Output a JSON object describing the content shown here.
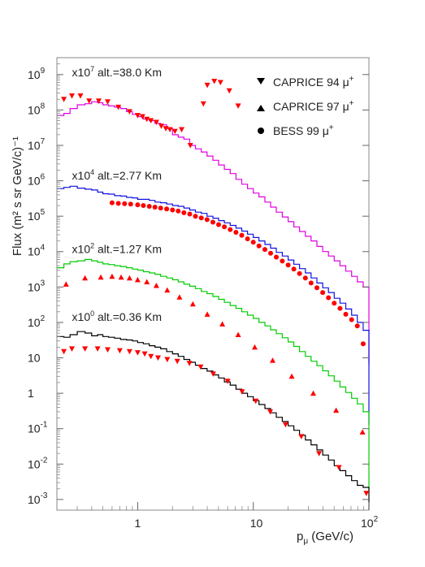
{
  "chart_data": {
    "type": "scatter",
    "title": "",
    "xlabel": "p",
    "xlabel_sub": "μ",
    "xlabel_unit": " (GeV/c)",
    "ylabel": "Flux (m² s sr GeV/c)⁻¹",
    "xscale": "log",
    "yscale": "log",
    "xlim": [
      0.2,
      100
    ],
    "ylim": [
      0.0005,
      3000000000
    ],
    "grid": false,
    "legend_position": "top-right",
    "x_ticks": [
      {
        "value": 1,
        "base": "1",
        "exp": ""
      },
      {
        "value": 10,
        "base": "10",
        "exp": ""
      },
      {
        "value": 100,
        "base": "10",
        "exp": "2"
      }
    ],
    "y_ticks": [
      {
        "value": 0.001,
        "base": "10",
        "exp": "-3"
      },
      {
        "value": 0.01,
        "base": "10",
        "exp": "-2"
      },
      {
        "value": 0.1,
        "base": "10",
        "exp": "-1"
      },
      {
        "value": 1,
        "base": "1",
        "exp": ""
      },
      {
        "value": 10,
        "base": "10",
        "exp": ""
      },
      {
        "value": 100,
        "base": "10",
        "exp": "2"
      },
      {
        "value": 1000,
        "base": "10",
        "exp": "3"
      },
      {
        "value": 10000,
        "base": "10",
        "exp": "4"
      },
      {
        "value": 100000,
        "base": "10",
        "exp": "5"
      },
      {
        "value": 1000000,
        "base": "10",
        "exp": "6"
      },
      {
        "value": 10000000,
        "base": "10",
        "exp": "7"
      },
      {
        "value": 100000000,
        "base": "10",
        "exp": "8"
      },
      {
        "value": 1000000000,
        "base": "10",
        "exp": "9"
      }
    ],
    "legend": [
      {
        "label": "CAPRICE 94",
        "particle": "μ",
        "charge": "+",
        "marker": "triangle-down"
      },
      {
        "label": "CAPRICE 97",
        "particle": "μ",
        "charge": "+",
        "marker": "triangle-up"
      },
      {
        "label": "BESS 99",
        "particle": "μ",
        "charge": "+",
        "marker": "circle"
      }
    ],
    "annotations": [
      {
        "scale_base": "x10",
        "scale_exp": "7",
        "text": " alt.=38.0 Km",
        "x": 0.27,
        "y": 900000000
      },
      {
        "scale_base": "x10",
        "scale_exp": "4",
        "text": " alt.=2.77 Km",
        "x": 0.27,
        "y": 1100000
      },
      {
        "scale_base": "x10",
        "scale_exp": "2",
        "text": " alt.=1.27 Km",
        "x": 0.27,
        "y": 9000
      },
      {
        "scale_base": "x10",
        "scale_exp": "0",
        "text": " alt.=0.36 Km",
        "x": 0.27,
        "y": 110
      }
    ],
    "series": [
      {
        "name": "",
        "kind": "step",
        "color": "#e000e0",
        "x": [
          0.2,
          0.23,
          0.26,
          0.3,
          0.35,
          0.4,
          0.45,
          0.5,
          0.56,
          0.63,
          0.71,
          0.8,
          0.9,
          1.0,
          1.12,
          1.26,
          1.41,
          1.58,
          1.78,
          2.0,
          2.24,
          2.51,
          2.82,
          3.16,
          3.55,
          3.98,
          4.47,
          5.01,
          5.62,
          6.31,
          7.08,
          7.94,
          8.91,
          10.0,
          11.2,
          12.6,
          14.1,
          15.8,
          17.8,
          20.0,
          22.4,
          25.1,
          28.2,
          31.6,
          35.5,
          39.8,
          44.7,
          50.1,
          56.2,
          63.1,
          70.8,
          79.4,
          89.1,
          100
        ],
        "y": [
          70000000,
          80000000,
          110000000,
          140000000,
          150000000,
          170000000,
          160000000,
          140000000,
          130000000,
          120000000,
          110000000,
          90000000,
          75000000,
          65000000,
          55000000,
          50000000,
          42000000,
          38000000,
          30000000,
          20000000,
          17000000,
          15000000,
          10000000,
          8000000,
          6500000,
          5000000,
          3800000,
          2800000,
          2100000,
          1600000,
          1100000,
          800000,
          600000,
          450000,
          350000,
          250000,
          180000,
          130000,
          95000,
          70000,
          50000,
          37000,
          27000,
          20000,
          14000,
          10000,
          7500,
          5500,
          4000,
          2800,
          2000,
          1400,
          1000,
          750
        ]
      },
      {
        "name": "",
        "kind": "step",
        "color": "#1010e0",
        "x": [
          0.2,
          0.23,
          0.26,
          0.3,
          0.35,
          0.4,
          0.45,
          0.5,
          0.56,
          0.63,
          0.71,
          0.8,
          0.9,
          1.0,
          1.12,
          1.26,
          1.41,
          1.58,
          1.78,
          2.0,
          2.24,
          2.51,
          2.82,
          3.16,
          3.55,
          3.98,
          4.47,
          5.01,
          5.62,
          6.31,
          7.08,
          7.94,
          8.91,
          10.0,
          11.2,
          12.6,
          14.1,
          15.8,
          17.8,
          20.0,
          22.4,
          25.1,
          28.2,
          31.6,
          35.5,
          39.8,
          44.7,
          50.1,
          56.2,
          63.1,
          70.8,
          79.4,
          89.1,
          100
        ],
        "y": [
          600000,
          650000,
          700000,
          620000,
          580000,
          550000,
          480000,
          430000,
          420000,
          380000,
          370000,
          340000,
          330000,
          300000,
          300000,
          280000,
          250000,
          240000,
          220000,
          200000,
          190000,
          170000,
          150000,
          130000,
          120000,
          100000,
          88000,
          75000,
          65000,
          55000,
          46000,
          38000,
          31000,
          25000,
          20000,
          16000,
          12500,
          9500,
          7500,
          5800,
          4400,
          3300,
          2500,
          1800,
          1300,
          950,
          700,
          480,
          350,
          240,
          160,
          100,
          60,
          15
        ]
      },
      {
        "name": "",
        "kind": "step",
        "color": "#00cc00",
        "x": [
          0.2,
          0.23,
          0.26,
          0.3,
          0.35,
          0.4,
          0.45,
          0.5,
          0.56,
          0.63,
          0.71,
          0.8,
          0.9,
          1.0,
          1.12,
          1.26,
          1.41,
          1.58,
          1.78,
          2.0,
          2.24,
          2.51,
          2.82,
          3.16,
          3.55,
          3.98,
          4.47,
          5.01,
          5.62,
          6.31,
          7.08,
          7.94,
          8.91,
          10.0,
          11.2,
          12.6,
          14.1,
          15.8,
          17.8,
          20.0,
          22.4,
          25.1,
          28.2,
          31.6,
          35.5,
          39.8,
          44.7,
          50.1,
          56.2,
          63.1,
          70.8,
          79.4,
          89.1,
          100
        ],
        "y": [
          3500,
          4500,
          5200,
          5500,
          6000,
          5500,
          5000,
          4500,
          4300,
          4000,
          3800,
          3500,
          3200,
          3000,
          2700,
          2500,
          2300,
          2000,
          1800,
          1600,
          1400,
          1200,
          1050,
          900,
          750,
          650,
          540,
          450,
          370,
          300,
          250,
          200,
          160,
          130,
          100,
          80,
          62,
          48,
          37,
          28,
          21,
          15,
          11,
          8,
          6,
          4.3,
          3.1,
          2.2,
          1.5,
          1.05,
          0.72,
          0.5,
          0.3,
          0.2
        ]
      },
      {
        "name": "",
        "kind": "step",
        "color": "#000000",
        "x": [
          0.2,
          0.23,
          0.26,
          0.3,
          0.35,
          0.4,
          0.45,
          0.5,
          0.56,
          0.63,
          0.71,
          0.8,
          0.9,
          1.0,
          1.12,
          1.26,
          1.41,
          1.58,
          1.78,
          2.0,
          2.24,
          2.51,
          2.82,
          3.16,
          3.55,
          3.98,
          4.47,
          5.01,
          5.62,
          6.31,
          7.08,
          7.94,
          8.91,
          10.0,
          11.2,
          12.6,
          14.1,
          15.8,
          17.8,
          20.0,
          22.4,
          25.1,
          28.2,
          31.6,
          35.5,
          39.8,
          44.7,
          50.1,
          56.2,
          63.1,
          70.8,
          79.4,
          89.1,
          100
        ],
        "y": [
          40,
          38,
          45,
          55,
          50,
          42,
          45,
          40,
          38,
          36,
          33,
          32,
          30,
          27,
          25,
          22,
          20,
          18,
          15,
          13,
          11,
          9,
          7.5,
          6.2,
          5,
          4.2,
          3.3,
          2.7,
          2.1,
          1.7,
          1.3,
          1.0,
          0.8,
          0.62,
          0.48,
          0.37,
          0.28,
          0.21,
          0.16,
          0.12,
          0.09,
          0.065,
          0.048,
          0.035,
          0.025,
          0.018,
          0.013,
          0.009,
          0.0065,
          0.0047,
          0.0034,
          0.0025,
          0.0022,
          0.002
        ]
      },
      {
        "name": "CAPRICE 94",
        "kind": "points",
        "marker": "triangle-down",
        "color": "#ff0000",
        "x": [
          0.23,
          0.27,
          0.32,
          0.38,
          0.46,
          0.55,
          0.68,
          0.85,
          1.0,
          1.1,
          1.2,
          1.3,
          1.45,
          1.6,
          1.75,
          1.9,
          2.1,
          2.4,
          2.85,
          3.7,
          4.0,
          4.6,
          5.2,
          6.2,
          7.4,
          0.23,
          0.27,
          0.35,
          0.45,
          0.55,
          0.7,
          0.85,
          1.0,
          1.15,
          1.3,
          1.5,
          1.8,
          2.2,
          2.8,
          3.5,
          4.5,
          6,
          8,
          10.5,
          14,
          19,
          26,
          37,
          55,
          95
        ],
        "y": [
          200000000,
          250000000,
          250000000,
          180000000,
          180000000,
          170000000,
          120000000,
          90000000,
          70000000,
          65000000,
          55000000,
          50000000,
          45000000,
          35000000,
          30000000,
          28000000,
          25000000,
          28000000,
          10000000,
          150000000,
          500000000,
          650000000,
          600000000,
          350000000,
          130000000,
          15,
          18,
          18,
          18,
          17,
          16,
          15,
          14,
          13,
          11,
          10,
          9,
          8,
          7,
          5.5,
          3.5,
          2.2,
          1.1,
          0.6,
          0.3,
          0.13,
          0.06,
          0.02,
          0.008,
          0.0015
        ]
      },
      {
        "name": "CAPRICE 97",
        "kind": "points",
        "marker": "triangle-up",
        "color": "#ff0000",
        "x": [
          0.24,
          0.35,
          0.48,
          0.6,
          0.72,
          0.85,
          1.0,
          1.2,
          1.45,
          1.8,
          2.3,
          3.0,
          4.0,
          5.4,
          7.4,
          10.3,
          14.7,
          21.5,
          33,
          52,
          88
        ],
        "y": [
          1200,
          1800,
          1900,
          2000,
          1900,
          1800,
          1600,
          1400,
          1100,
          820,
          520,
          330,
          170,
          90,
          45,
          20,
          8.5,
          3,
          1.0,
          0.33,
          0.08
        ]
      },
      {
        "name": "BESS 99",
        "kind": "points",
        "marker": "circle",
        "color": "#ff0000",
        "x": [
          0.6,
          0.68,
          0.77,
          0.87,
          1.0,
          1.12,
          1.26,
          1.41,
          1.58,
          1.78,
          2.0,
          2.24,
          2.51,
          2.82,
          3.16,
          3.55,
          3.98,
          4.47,
          5.01,
          5.62,
          6.31,
          7.08,
          7.94,
          8.91,
          10.0,
          11.2,
          12.6,
          14.1,
          15.8,
          17.8,
          20.0,
          22.4,
          25.1,
          28.2,
          31.6,
          35.5,
          39.8,
          44.7,
          50.1,
          56.2,
          63.1,
          70.8,
          79.4,
          89.1
        ],
        "y": [
          240000,
          230000,
          225000,
          220000,
          210000,
          200000,
          190000,
          180000,
          170000,
          160000,
          150000,
          140000,
          125000,
          115000,
          100000,
          90000,
          80000,
          68000,
          58000,
          50000,
          42000,
          35000,
          29000,
          23000,
          18500,
          14500,
          11500,
          9000,
          7000,
          5400,
          4200,
          3200,
          2400,
          1800,
          1300,
          950,
          700,
          500,
          350,
          250,
          170,
          120,
          80,
          25
        ]
      }
    ]
  }
}
